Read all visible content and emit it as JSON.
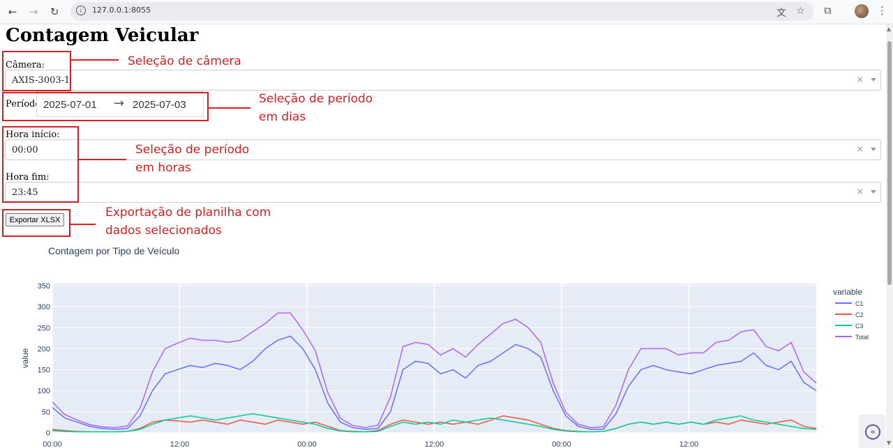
{
  "browser": {
    "url": "127.0.0.1:8055",
    "back_icon": "back-arrow-icon",
    "forward_icon": "forward-arrow-icon",
    "reload_icon": "reload-icon",
    "translate_icon": "translate-icon",
    "bookmark_icon": "star-icon",
    "extensions_icon": "puzzle-icon",
    "menu_icon": "kebab-menu-icon"
  },
  "page": {
    "title": "Contagem Veicular",
    "camera_label": "Câmera:",
    "camera_value": "AXIS-3003-1",
    "period_label": "Período:",
    "period_start": "2025-07-01",
    "period_arrow": "→",
    "period_end": "2025-07-03",
    "hour_start_label": "Hora início:",
    "hour_start_value": "00:00",
    "hour_end_label": "Hora fim:",
    "hour_end_value": "23:45",
    "export_label": "Exportar XLSX",
    "clear_glyph": "×"
  },
  "annotations": {
    "camera": "Seleção de câmera",
    "period_line1": "Seleção de período",
    "period_line2": "em dias",
    "hours_line1": "Seleção de período",
    "hours_line2": "em horas",
    "export_line1": "Exportação de planilha com",
    "export_line2": "dados selecionados",
    "color": "#d32020"
  },
  "chart_data": {
    "type": "line",
    "title": "Contagem por Tipo de Veículo",
    "xlabel": "",
    "ylabel": "value",
    "x_tick_labels": [
      "00:00",
      "12:00",
      "00:00",
      "12:00",
      "00:00",
      "12:00"
    ],
    "x_ticks_hours": [
      0,
      12,
      24,
      36,
      48,
      60
    ],
    "x_range_hours": [
      0,
      72
    ],
    "y_ticks": [
      0,
      50,
      100,
      150,
      200,
      250,
      300,
      350
    ],
    "ylim": [
      0,
      355
    ],
    "sample_interval_hours": 1,
    "legend_title": "variable",
    "legend_position": "right",
    "grid": true,
    "plot_bgcolor": "#e5ecf6",
    "series": [
      {
        "name": "C1",
        "color": "#636efa",
        "values": [
          60,
          35,
          25,
          15,
          10,
          8,
          10,
          40,
          100,
          140,
          150,
          160,
          155,
          165,
          160,
          150,
          170,
          200,
          220,
          230,
          200,
          150,
          70,
          25,
          12,
          8,
          10,
          50,
          150,
          170,
          165,
          140,
          150,
          130,
          160,
          170,
          190,
          210,
          200,
          180,
          100,
          40,
          15,
          8,
          8,
          45,
          110,
          150,
          160,
          150,
          145,
          140,
          150,
          160,
          165,
          170,
          190,
          160,
          150,
          170,
          120,
          100
        ]
      },
      {
        "name": "C2",
        "color": "#ef553b",
        "values": [
          8,
          5,
          3,
          2,
          2,
          2,
          3,
          10,
          25,
          30,
          28,
          25,
          30,
          25,
          20,
          30,
          25,
          20,
          30,
          25,
          20,
          25,
          15,
          5,
          3,
          2,
          5,
          20,
          30,
          25,
          20,
          25,
          20,
          25,
          20,
          30,
          40,
          35,
          30,
          20,
          10,
          5,
          3,
          2,
          3,
          10,
          20,
          25,
          20,
          25,
          20,
          25,
          20,
          25,
          20,
          30,
          25,
          20,
          25,
          30,
          15,
          10
        ]
      },
      {
        "name": "C3",
        "color": "#00cc96",
        "values": [
          5,
          3,
          2,
          2,
          2,
          2,
          3,
          8,
          20,
          30,
          35,
          40,
          35,
          30,
          35,
          40,
          45,
          40,
          35,
          30,
          25,
          20,
          10,
          4,
          2,
          2,
          3,
          15,
          25,
          20,
          25,
          20,
          30,
          25,
          30,
          35,
          30,
          25,
          20,
          15,
          8,
          4,
          2,
          2,
          3,
          10,
          20,
          25,
          20,
          25,
          20,
          25,
          20,
          30,
          35,
          40,
          30,
          25,
          20,
          15,
          10,
          8
        ]
      },
      {
        "name": "Total",
        "color": "#ab63fa",
        "values": [
          73,
          43,
          30,
          19,
          14,
          12,
          16,
          58,
          145,
          200,
          213,
          225,
          220,
          220,
          215,
          220,
          240,
          260,
          285,
          285,
          245,
          195,
          95,
          34,
          17,
          12,
          18,
          85,
          205,
          215,
          210,
          185,
          200,
          180,
          210,
          235,
          260,
          270,
          250,
          215,
          118,
          49,
          20,
          12,
          14,
          65,
          150,
          200,
          200,
          200,
          185,
          190,
          190,
          215,
          220,
          240,
          245,
          205,
          195,
          215,
          145,
          118
        ]
      }
    ]
  }
}
